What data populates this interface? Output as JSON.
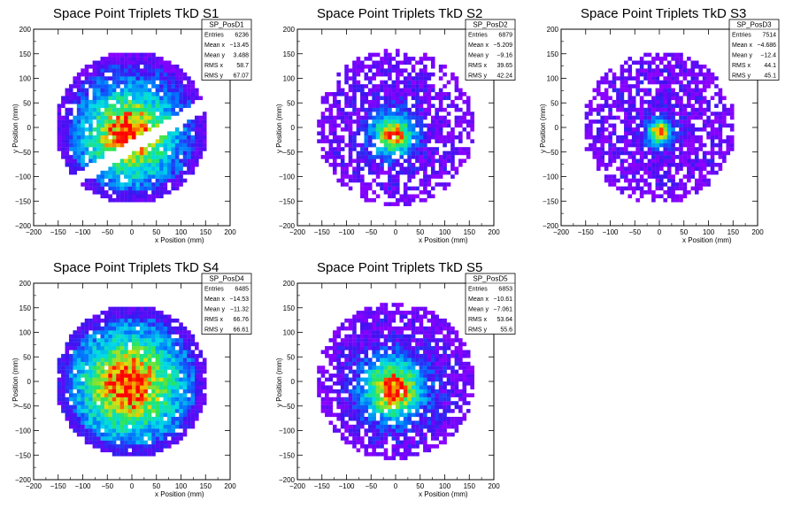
{
  "chart_data": [
    {
      "type": "heatmap",
      "title": "Space Point Triplets TkD S1",
      "xlabel": "x Position (mm)",
      "ylabel": "y Position (mm)",
      "xlim": [
        -200,
        200
      ],
      "ylim": [
        -200,
        200
      ],
      "xticks": [
        "−200",
        "−150",
        "−100",
        "−50",
        "0",
        "50",
        "100",
        "150",
        "200"
      ],
      "yticks": [
        "200",
        "150",
        "100",
        "50",
        "0",
        "−50",
        "−100",
        "−150",
        "−200"
      ],
      "hist_name": "SP_PosD1",
      "stats": [
        {
          "name": "Entries",
          "value": "6236"
        },
        {
          "name": "Mean x",
          "value": "−13.45"
        },
        {
          "name": "Mean y",
          "value": "3.488"
        },
        {
          "name": "RMS x",
          "value": "58.7"
        },
        {
          "name": "RMS y",
          "value": "67.07"
        }
      ],
      "distribution": {
        "shape": "disk-with-gap",
        "radius_mm": 155,
        "peak": [
          -5,
          -15
        ],
        "spread_mm": 70,
        "fill": 0.9,
        "gap": {
          "angle_deg": 30,
          "offset_mm": -35,
          "width_mm": 12
        },
        "clip_left_mm": -150
      }
    },
    {
      "type": "heatmap",
      "title": "Space Point Triplets TkD S2",
      "xlabel": "x Position (mm)",
      "ylabel": "y Position (mm)",
      "xlim": [
        -200,
        200
      ],
      "ylim": [
        -200,
        200
      ],
      "xticks": [
        "−200",
        "−150",
        "−100",
        "−50",
        "0",
        "50",
        "100",
        "150",
        "200"
      ],
      "yticks": [
        "200",
        "150",
        "100",
        "50",
        "0",
        "−50",
        "−100",
        "−150",
        "−200"
      ],
      "hist_name": "SP_PosD2",
      "stats": [
        {
          "name": "Entries",
          "value": "6879"
        },
        {
          "name": "Mean x",
          "value": "−5.209"
        },
        {
          "name": "Mean y",
          "value": "−9.16"
        },
        {
          "name": "RMS x",
          "value": "39.65"
        },
        {
          "name": "RMS y",
          "value": "42.24"
        }
      ],
      "distribution": {
        "shape": "disk",
        "radius_mm": 160,
        "peak": [
          -5,
          -15
        ],
        "spread_mm": 30,
        "fill": 0.55
      }
    },
    {
      "type": "heatmap",
      "title": "Space Point Triplets TkD S3",
      "xlabel": "x Position (mm)",
      "ylabel": "y Position (mm)",
      "xlim": [
        -200,
        200
      ],
      "ylim": [
        -200,
        200
      ],
      "xticks": [
        "−200",
        "−150",
        "−100",
        "−50",
        "0",
        "50",
        "100",
        "150",
        "200"
      ],
      "yticks": [
        "200",
        "150",
        "100",
        "50",
        "0",
        "−50",
        "−100",
        "−150",
        "−200"
      ],
      "hist_name": "SP_PosD3",
      "stats": [
        {
          "name": "Entries",
          "value": "7514"
        },
        {
          "name": "Mean x",
          "value": "−4.686"
        },
        {
          "name": "Mean y",
          "value": "−12.4"
        },
        {
          "name": "RMS x",
          "value": "44.1"
        },
        {
          "name": "RMS y",
          "value": "45.1"
        }
      ],
      "distribution": {
        "shape": "disk",
        "radius_mm": 155,
        "peak": [
          0,
          -10
        ],
        "spread_mm": 18,
        "fill": 0.6
      }
    },
    {
      "type": "heatmap",
      "title": "Space Point Triplets TkD S4",
      "xlabel": "x Position (mm)",
      "ylabel": "y Position (mm)",
      "xlim": [
        -200,
        200
      ],
      "ylim": [
        -200,
        200
      ],
      "xticks": [
        "−200",
        "−150",
        "−100",
        "−50",
        "0",
        "50",
        "100",
        "150",
        "200"
      ],
      "yticks": [
        "200",
        "150",
        "100",
        "50",
        "0",
        "−50",
        "−100",
        "−150",
        "−200"
      ],
      "hist_name": "SP_PosD4",
      "stats": [
        {
          "name": "Entries",
          "value": "6485"
        },
        {
          "name": "Mean x",
          "value": "−14.53"
        },
        {
          "name": "Mean y",
          "value": "−11.32"
        },
        {
          "name": "RMS x",
          "value": "66.76"
        },
        {
          "name": "RMS y",
          "value": "66.61"
        }
      ],
      "distribution": {
        "shape": "disk",
        "radius_mm": 155,
        "peak": [
          -5,
          -5
        ],
        "spread_mm": 80,
        "fill": 0.95
      }
    },
    {
      "type": "heatmap",
      "title": "Space Point Triplets TkD S5",
      "xlabel": "x Position (mm)",
      "ylabel": "y Position (mm)",
      "xlim": [
        -200,
        200
      ],
      "ylim": [
        -200,
        200
      ],
      "xticks": [
        "−200",
        "−150",
        "−100",
        "−50",
        "0",
        "50",
        "100",
        "150",
        "200"
      ],
      "yticks": [
        "200",
        "150",
        "100",
        "50",
        "0",
        "−50",
        "−100",
        "−150",
        "−200"
      ],
      "hist_name": "SP_PosD5",
      "stats": [
        {
          "name": "Entries",
          "value": "6853"
        },
        {
          "name": "Mean x",
          "value": "−10.61"
        },
        {
          "name": "Mean y",
          "value": "−7.061"
        },
        {
          "name": "RMS x",
          "value": "53.64"
        },
        {
          "name": "RMS y",
          "value": "55.6"
        }
      ],
      "distribution": {
        "shape": "disk",
        "radius_mm": 160,
        "peak": [
          -5,
          -15
        ],
        "spread_mm": 45,
        "fill": 0.75
      }
    }
  ]
}
